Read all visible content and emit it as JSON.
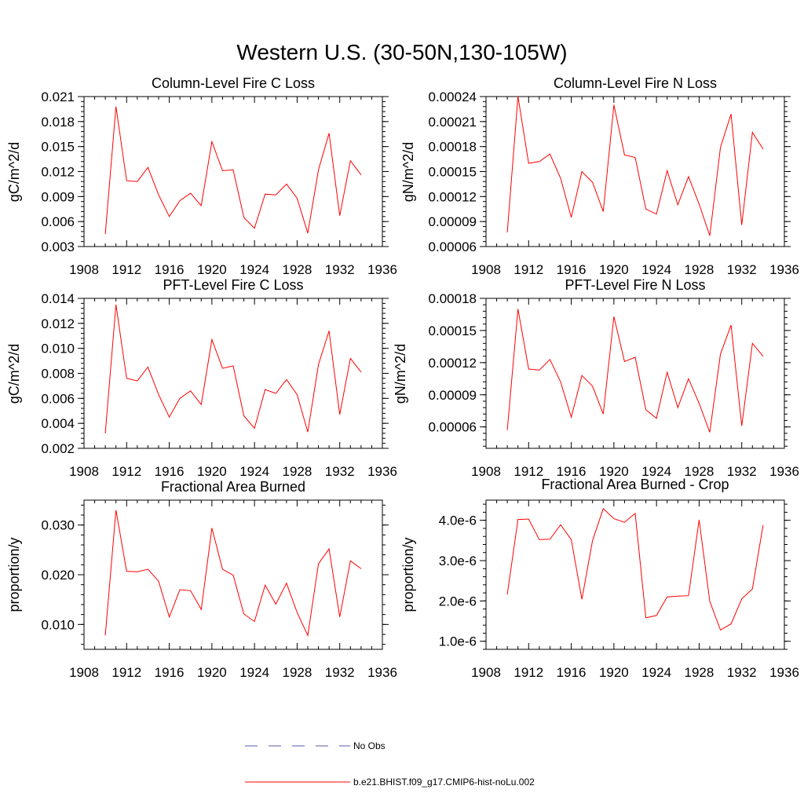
{
  "figure": {
    "title": "Western U.S. (30-50N,130-105W)"
  },
  "chart_data": [
    {
      "type": "line",
      "title": "Column-Level Fire C Loss",
      "xlabel": "",
      "ylabel": "gC/m^2/d",
      "xlim": [
        1908,
        1936
      ],
      "ylim": [
        0.003,
        0.021
      ],
      "xticks": [
        1908,
        1912,
        1916,
        1920,
        1924,
        1928,
        1932,
        1936
      ],
      "yticks": [
        "0.003",
        "0.006",
        "0.009",
        "0.012",
        "0.015",
        "0.018",
        "0.021"
      ],
      "x": [
        1910,
        1911,
        1912,
        1913,
        1914,
        1915,
        1916,
        1917,
        1918,
        1919,
        1920,
        1921,
        1922,
        1923,
        1924,
        1925,
        1926,
        1927,
        1928,
        1929,
        1930,
        1931,
        1932,
        1933,
        1934
      ],
      "series": [
        {
          "name": "b.e21.BHIST.f09_g17.CMIP6-hist-noLu.002",
          "color": "#ff0000",
          "values": [
            0.0045,
            0.0198,
            0.0109,
            0.0108,
            0.0125,
            0.0092,
            0.0066,
            0.0085,
            0.0094,
            0.0079,
            0.0156,
            0.0121,
            0.0122,
            0.0065,
            0.0052,
            0.0093,
            0.0092,
            0.0105,
            0.0088,
            0.0046,
            0.0122,
            0.0166,
            0.0067,
            0.0133,
            0.0116
          ]
        }
      ],
      "grid": false
    },
    {
      "type": "line",
      "title": "Column-Level Fire N Loss",
      "xlabel": "",
      "ylabel": "gN/m^2/d",
      "xlim": [
        1908,
        1936
      ],
      "ylim": [
        6e-05,
        0.00024
      ],
      "xticks": [
        1908,
        1912,
        1916,
        1920,
        1924,
        1928,
        1932,
        1936
      ],
      "yticks": [
        "0.00006",
        "0.00009",
        "0.00012",
        "0.00015",
        "0.00018",
        "0.00021",
        "0.00024"
      ],
      "x": [
        1910,
        1911,
        1912,
        1913,
        1914,
        1915,
        1916,
        1917,
        1918,
        1919,
        1920,
        1921,
        1922,
        1923,
        1924,
        1925,
        1926,
        1927,
        1928,
        1929,
        1930,
        1931,
        1932,
        1933,
        1934
      ],
      "series": [
        {
          "name": "b.e21.BHIST.f09_g17.CMIP6-hist-noLu.002",
          "color": "#ff0000",
          "values": [
            7.7e-05,
            0.00024,
            0.00016,
            0.000162,
            0.000171,
            0.000142,
            9.5e-05,
            0.00015,
            0.000137,
            0.000102,
            0.00023,
            0.00017,
            0.000167,
            0.000105,
            9.9e-05,
            0.000151,
            0.00011,
            0.000144,
            0.000111,
            7.3e-05,
            0.000179,
            0.000219,
            8.6e-05,
            0.000197,
            0.000177
          ]
        }
      ],
      "grid": false
    },
    {
      "type": "line",
      "title": "PFT-Level Fire C Loss",
      "xlabel": "",
      "ylabel": "gC/m^2/d",
      "xlim": [
        1908,
        1936
      ],
      "ylim": [
        0.002,
        0.014
      ],
      "xticks": [
        1908,
        1912,
        1916,
        1920,
        1924,
        1928,
        1932,
        1936
      ],
      "yticks": [
        "0.002",
        "0.004",
        "0.006",
        "0.008",
        "0.010",
        "0.012",
        "0.014"
      ],
      "x": [
        1910,
        1911,
        1912,
        1913,
        1914,
        1915,
        1916,
        1917,
        1918,
        1919,
        1920,
        1921,
        1922,
        1923,
        1924,
        1925,
        1926,
        1927,
        1928,
        1929,
        1930,
        1931,
        1932,
        1933,
        1934
      ],
      "series": [
        {
          "name": "b.e21.BHIST.f09_g17.CMIP6-hist-noLu.002",
          "color": "#ff0000",
          "values": [
            0.0032,
            0.0135,
            0.0076,
            0.0074,
            0.0085,
            0.0063,
            0.0045,
            0.006,
            0.0066,
            0.0055,
            0.0107,
            0.0084,
            0.0086,
            0.0046,
            0.0036,
            0.0067,
            0.0064,
            0.0075,
            0.0063,
            0.0033,
            0.0087,
            0.0114,
            0.0047,
            0.0092,
            0.0081
          ]
        }
      ],
      "grid": false
    },
    {
      "type": "line",
      "title": "PFT-Level Fire N Loss",
      "xlabel": "",
      "ylabel": "gN/m^2/d",
      "xlim": [
        1908,
        1936
      ],
      "ylim": [
        4e-05,
        0.00018
      ],
      "xticks": [
        1908,
        1912,
        1916,
        1920,
        1924,
        1928,
        1932,
        1936
      ],
      "yticks": [
        "0.00006",
        "0.00009",
        "0.00012",
        "0.00015",
        "0.00018"
      ],
      "x": [
        1910,
        1911,
        1912,
        1913,
        1914,
        1915,
        1916,
        1917,
        1918,
        1919,
        1920,
        1921,
        1922,
        1923,
        1924,
        1925,
        1926,
        1927,
        1928,
        1929,
        1930,
        1931,
        1932,
        1933,
        1934
      ],
      "series": [
        {
          "name": "b.e21.BHIST.f09_g17.CMIP6-hist-noLu.002",
          "color": "#ff0000",
          "values": [
            5.7e-05,
            0.00017,
            0.000114,
            0.000113,
            0.000123,
            0.000102,
            6.9e-05,
            0.000108,
            9.8e-05,
            7.2e-05,
            0.000163,
            0.000121,
            0.000125,
            7.6e-05,
            6.8e-05,
            0.000111,
            7.8e-05,
            0.000105,
            8.2e-05,
            5.5e-05,
            0.000128,
            0.000155,
            6.1e-05,
            0.000138,
            0.000126
          ]
        }
      ],
      "grid": false
    },
    {
      "type": "line",
      "title": "Fractional Area Burned",
      "xlabel": "",
      "ylabel": "proportion/y",
      "xlim": [
        1908,
        1936
      ],
      "ylim": [
        0.005,
        0.035
      ],
      "xticks": [
        1908,
        1912,
        1916,
        1920,
        1924,
        1928,
        1932,
        1936
      ],
      "yticks": [
        "0.010",
        "0.020",
        "0.030"
      ],
      "x": [
        1910,
        1911,
        1912,
        1913,
        1914,
        1915,
        1916,
        1917,
        1918,
        1919,
        1920,
        1921,
        1922,
        1923,
        1924,
        1925,
        1926,
        1927,
        1928,
        1929,
        1930,
        1931,
        1932,
        1933,
        1934
      ],
      "series": [
        {
          "name": "b.e21.BHIST.f09_g17.CMIP6-hist-noLu.002",
          "color": "#ff0000",
          "values": [
            0.0078,
            0.033,
            0.0207,
            0.0206,
            0.0211,
            0.0187,
            0.0115,
            0.017,
            0.0168,
            0.013,
            0.0294,
            0.0211,
            0.0199,
            0.0121,
            0.0106,
            0.0179,
            0.0141,
            0.0183,
            0.0124,
            0.0078,
            0.0222,
            0.0252,
            0.0115,
            0.0228,
            0.0212
          ]
        }
      ],
      "grid": false
    },
    {
      "type": "line",
      "title": "Fractional Area Burned - Crop",
      "xlabel": "",
      "ylabel": "proportion/y",
      "xlim": [
        1908,
        1936
      ],
      "ylim": [
        8e-07,
        4.5e-06
      ],
      "xticks": [
        1908,
        1912,
        1916,
        1920,
        1924,
        1928,
        1932,
        1936
      ],
      "yticks": [
        "1.0e-6",
        "2.0e-6",
        "3.0e-6",
        "4.0e-6"
      ],
      "x": [
        1910,
        1911,
        1912,
        1913,
        1914,
        1915,
        1916,
        1917,
        1918,
        1919,
        1920,
        1921,
        1922,
        1923,
        1924,
        1925,
        1926,
        1927,
        1928,
        1929,
        1930,
        1931,
        1932,
        1933,
        1934
      ],
      "series": [
        {
          "name": "b.e21.BHIST.f09_g17.CMIP6-hist-noLu.002",
          "color": "#ff0000",
          "values": [
            2.16e-06,
            4.02e-06,
            4.03e-06,
            3.52e-06,
            3.53e-06,
            3.89e-06,
            3.52e-06,
            2.04e-06,
            3.5e-06,
            4.29e-06,
            4.04e-06,
            3.95e-06,
            4.17e-06,
            1.58e-06,
            1.64e-06,
            2.1e-06,
            2.12e-06,
            2.13e-06,
            4.01e-06,
            1.99e-06,
            1.28e-06,
            1.43e-06,
            2.05e-06,
            2.3e-06,
            3.88e-06
          ]
        }
      ],
      "grid": false
    }
  ],
  "legend": {
    "placement": "bottom-center",
    "items": [
      {
        "label": "No Obs",
        "color": "#5a5aa8",
        "style": "dashed"
      },
      {
        "label": "b.e21.BHIST.f09_g17.CMIP6-hist-noLu.002",
        "color": "#ff0000",
        "style": "solid"
      }
    ]
  }
}
